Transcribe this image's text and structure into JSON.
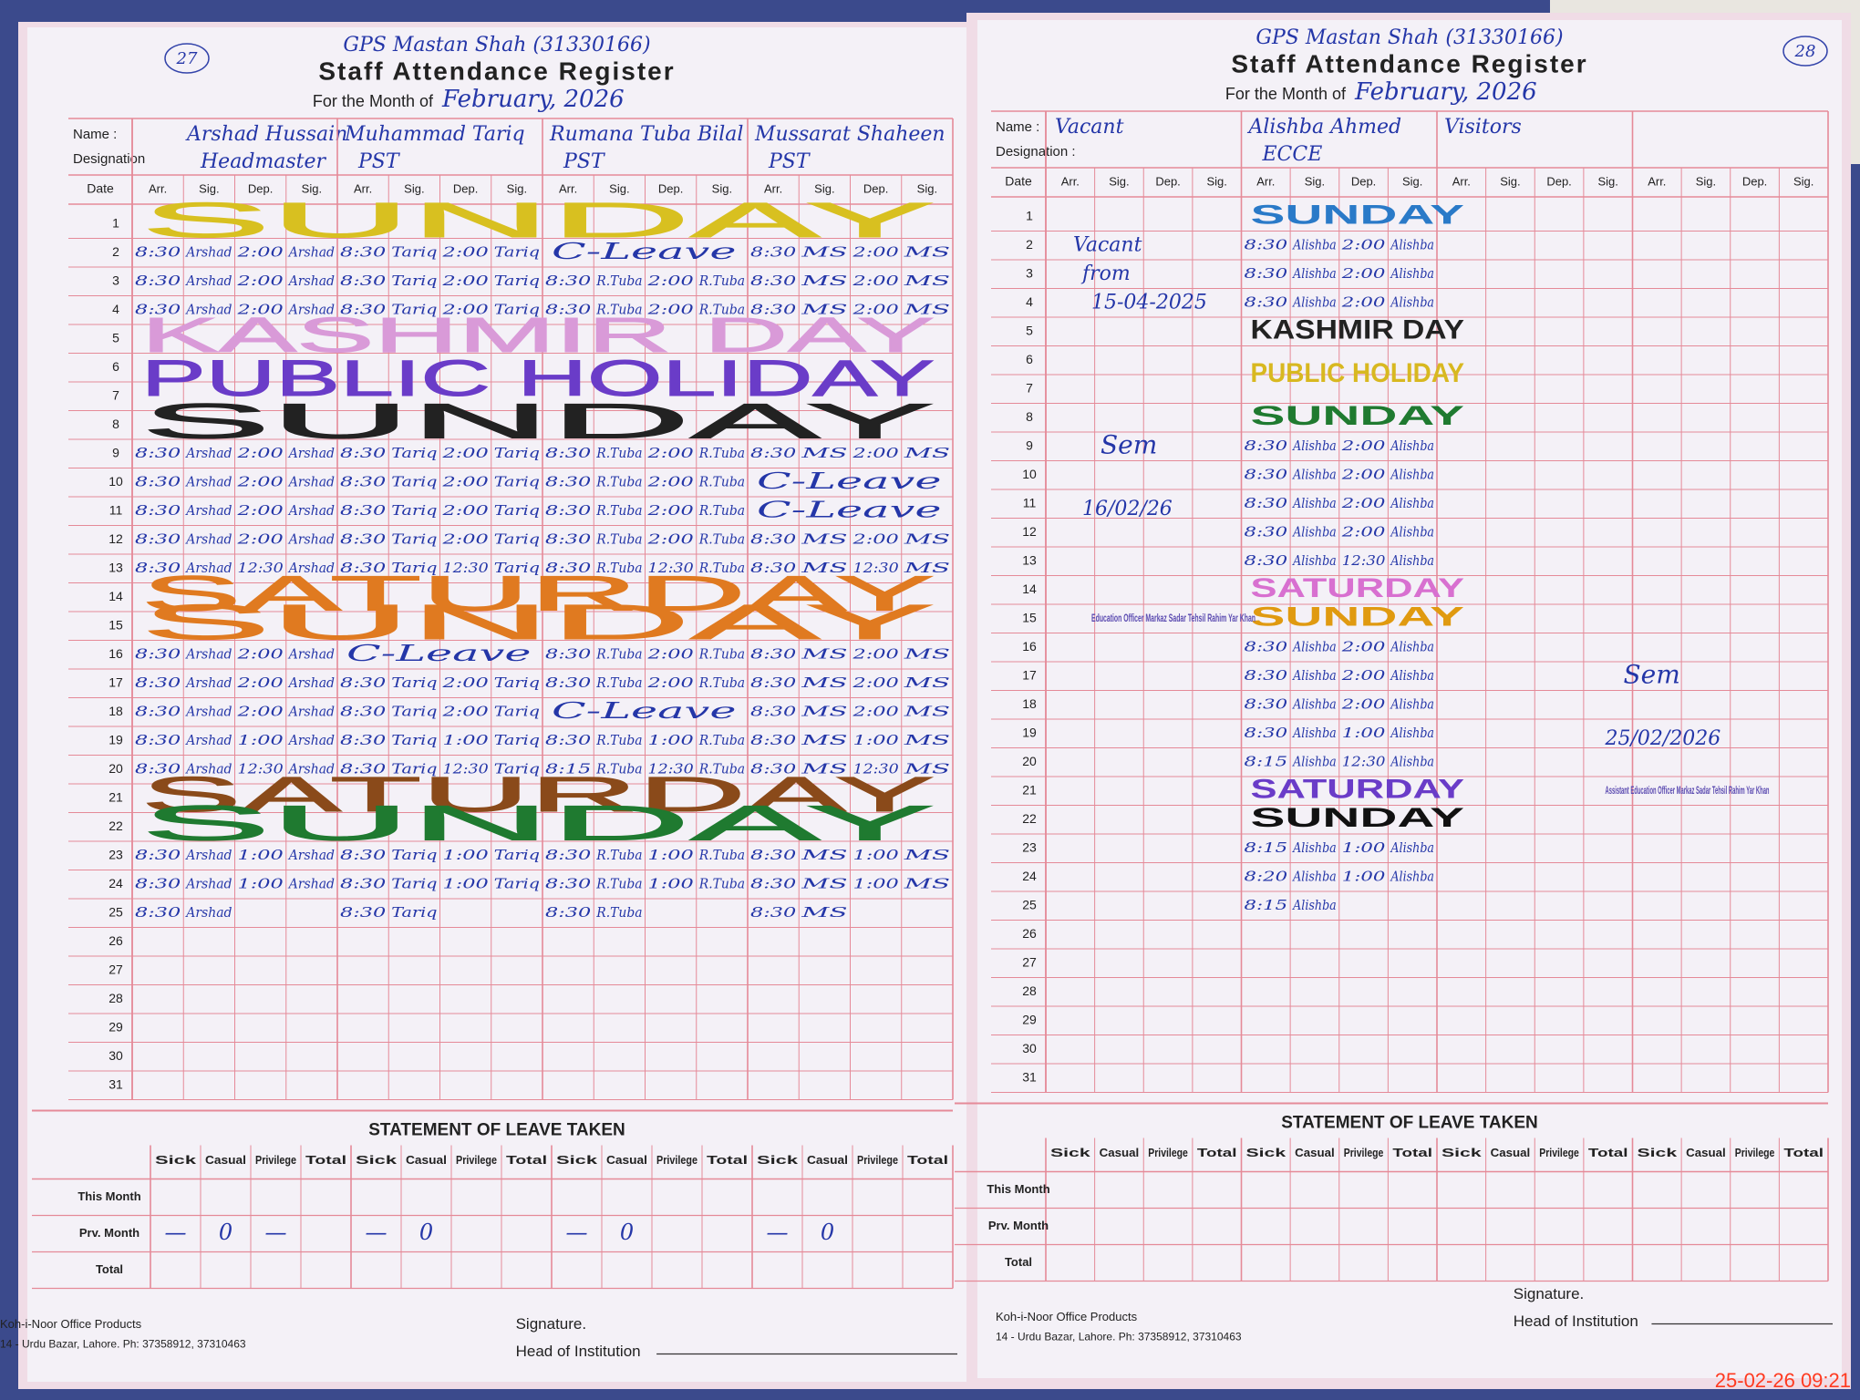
{
  "pages": [
    {
      "page_no": "27",
      "school": "GPS Mastan Shah (31330166)",
      "title": "Staff Attendance Register",
      "month_label": "For the Month of",
      "month": "February, 2026",
      "name_label": "Name :",
      "designation_label": "Designation",
      "date_label": "Date",
      "subheaders": [
        "Arr.",
        "Sig.",
        "Dep.",
        "Sig."
      ],
      "staff": [
        {
          "name": "Arshad Hussain",
          "designation": "Headmaster"
        },
        {
          "name": "Muhammad Tariq",
          "designation": "PST"
        },
        {
          "name": "Rumana Tuba Bilal",
          "designation": "PST"
        },
        {
          "name": "Mussarat Shaheen",
          "designation": "PST"
        }
      ],
      "rows": [
        {
          "date": "1",
          "note": "SUNDAY",
          "color": "#d8c020"
        },
        {
          "date": "2",
          "cells": [
            [
              "8:30",
              "Arshad",
              "2:00",
              "Arshad"
            ],
            [
              "8:30",
              "Tariq",
              "2:00",
              "Tariq"
            ],
            "C-Leave",
            [
              "8:30",
              "MS",
              "2:00",
              "MS"
            ]
          ]
        },
        {
          "date": "3",
          "cells": [
            [
              "8:30",
              "Arshad",
              "2:00",
              "Arshad"
            ],
            [
              "8:30",
              "Tariq",
              "2:00",
              "Tariq"
            ],
            [
              "8:30",
              "R.Tuba",
              "2:00",
              "R.Tuba"
            ],
            [
              "8:30",
              "MS",
              "2:00",
              "MS"
            ]
          ]
        },
        {
          "date": "4",
          "cells": [
            [
              "8:30",
              "Arshad",
              "2:00",
              "Arshad"
            ],
            [
              "8:30",
              "Tariq",
              "2:00",
              "Tariq"
            ],
            [
              "8:30",
              "R.Tuba",
              "2:00",
              "R.Tuba"
            ],
            [
              "8:30",
              "MS",
              "2:00",
              "MS"
            ]
          ]
        },
        {
          "date": "5",
          "note": "KASHMIR DAY",
          "color": "#d99ad8"
        },
        {
          "date": "6",
          "note": "PUBLIC HOLIDAY",
          "color": "#6a3cc8"
        },
        {
          "date": "7"
        },
        {
          "date": "8",
          "note": "SUNDAY",
          "color": "#222222"
        },
        {
          "date": "9",
          "cells": [
            [
              "8:30",
              "Arshad",
              "2:00",
              "Arshad"
            ],
            [
              "8:30",
              "Tariq",
              "2:00",
              "Tariq"
            ],
            [
              "8:30",
              "R.Tuba",
              "2:00",
              "R.Tuba"
            ],
            [
              "8:30",
              "MS",
              "2:00",
              "MS"
            ]
          ]
        },
        {
          "date": "10",
          "cells": [
            [
              "8:30",
              "Arshad",
              "2:00",
              "Arshad"
            ],
            [
              "8:30",
              "Tariq",
              "2:00",
              "Tariq"
            ],
            [
              "8:30",
              "R.Tuba",
              "2:00",
              "R.Tuba"
            ],
            "C-Leave"
          ]
        },
        {
          "date": "11",
          "cells": [
            [
              "8:30",
              "Arshad",
              "2:00",
              "Arshad"
            ],
            [
              "8:30",
              "Tariq",
              "2:00",
              "Tariq"
            ],
            [
              "8:30",
              "R.Tuba",
              "2:00",
              "R.Tuba"
            ],
            "C-Leave"
          ]
        },
        {
          "date": "12",
          "cells": [
            [
              "8:30",
              "Arshad",
              "2:00",
              "Arshad"
            ],
            [
              "8:30",
              "Tariq",
              "2:00",
              "Tariq"
            ],
            [
              "8:30",
              "R.Tuba",
              "2:00",
              "R.Tuba"
            ],
            [
              "8:30",
              "MS",
              "2:00",
              "MS"
            ]
          ]
        },
        {
          "date": "13",
          "cells": [
            [
              "8:30",
              "Arshad",
              "12:30",
              "Arshad"
            ],
            [
              "8:30",
              "Tariq",
              "12:30",
              "Tariq"
            ],
            [
              "8:30",
              "R.Tuba",
              "12:30",
              "R.Tuba"
            ],
            [
              "8:30",
              "MS",
              "12:30",
              "MS"
            ]
          ]
        },
        {
          "date": "14",
          "note": "SATURDAY",
          "color": "#e07a20"
        },
        {
          "date": "15",
          "note": "SUNDAY",
          "color": "#e07a20"
        },
        {
          "date": "16",
          "cells": [
            [
              "8:30",
              "Arshad",
              "2:00",
              "Arshad"
            ],
            "C-Leave",
            [
              "8:30",
              "R.Tuba",
              "2:00",
              "R.Tuba"
            ],
            [
              "8:30",
              "MS",
              "2:00",
              "MS"
            ]
          ]
        },
        {
          "date": "17",
          "cells": [
            [
              "8:30",
              "Arshad",
              "2:00",
              "Arshad"
            ],
            [
              "8:30",
              "Tariq",
              "2:00",
              "Tariq"
            ],
            [
              "8:30",
              "R.Tuba",
              "2:00",
              "R.Tuba"
            ],
            [
              "8:30",
              "MS",
              "2:00",
              "MS"
            ]
          ]
        },
        {
          "date": "18",
          "cells": [
            [
              "8:30",
              "Arshad",
              "2:00",
              "Arshad"
            ],
            [
              "8:30",
              "Tariq",
              "2:00",
              "Tariq"
            ],
            "C-Leave",
            [
              "8:30",
              "MS",
              "2:00",
              "MS"
            ]
          ]
        },
        {
          "date": "19",
          "cells": [
            [
              "8:30",
              "Arshad",
              "1:00",
              "Arshad"
            ],
            [
              "8:30",
              "Tariq",
              "1:00",
              "Tariq"
            ],
            [
              "8:30",
              "R.Tuba",
              "1:00",
              "R.Tuba"
            ],
            [
              "8:30",
              "MS",
              "1:00",
              "MS"
            ]
          ]
        },
        {
          "date": "20",
          "cells": [
            [
              "8:30",
              "Arshad",
              "12:30",
              "Arshad"
            ],
            [
              "8:30",
              "Tariq",
              "12:30",
              "Tariq"
            ],
            [
              "8:15",
              "R.Tuba",
              "12:30",
              "R.Tuba"
            ],
            [
              "8:30",
              "MS",
              "12:30",
              "MS"
            ]
          ]
        },
        {
          "date": "21",
          "note": "SATURDAY",
          "color": "#8a4a1a"
        },
        {
          "date": "22",
          "note": "SUNDAY",
          "color": "#1f7a30"
        },
        {
          "date": "23",
          "cells": [
            [
              "8:30",
              "Arshad",
              "1:00",
              "Arshad"
            ],
            [
              "8:30",
              "Tariq",
              "1:00",
              "Tariq"
            ],
            [
              "8:30",
              "R.Tuba",
              "1:00",
              "R.Tuba"
            ],
            [
              "8:30",
              "MS",
              "1:00",
              "MS"
            ]
          ]
        },
        {
          "date": "24",
          "cells": [
            [
              "8:30",
              "Arshad",
              "1:00",
              "Arshad"
            ],
            [
              "8:30",
              "Tariq",
              "1:00",
              "Tariq"
            ],
            [
              "8:30",
              "R.Tuba",
              "1:00",
              "R.Tuba"
            ],
            [
              "8:30",
              "MS",
              "1:00",
              "MS"
            ]
          ]
        },
        {
          "date": "25",
          "cells": [
            [
              "8:30",
              "Arshad"
            ],
            [
              "8:30",
              "Tariq"
            ],
            [
              "8:30",
              "R.Tuba"
            ],
            [
              "8:30",
              "MS"
            ]
          ]
        },
        {
          "date": "26"
        },
        {
          "date": "27"
        },
        {
          "date": "28"
        },
        {
          "date": "29"
        },
        {
          "date": "30"
        },
        {
          "date": "31"
        }
      ],
      "leave": {
        "title": "STATEMENT OF LEAVE TAKEN",
        "columns": [
          "Sick",
          "Casual",
          "Privilege",
          "Total"
        ],
        "row_labels": [
          "This Month",
          "Prv. Month",
          "Total"
        ],
        "prv_month": [
          [
            "—",
            "0",
            "—"
          ],
          [
            "—",
            "0"
          ],
          [
            "—",
            "0"
          ],
          [
            "—",
            "0"
          ]
        ]
      },
      "brand": "Koh-i-Noor Office Products",
      "address": "14 - Urdu Bazar, Lahore. Ph: 37358912, 37310463",
      "signature_label": "Signature.",
      "head_label": "Head of Institution"
    },
    {
      "page_no": "28",
      "school": "GPS Mastan Shah (31330166)",
      "title": "Staff Attendance Register",
      "month_label": "For the Month of",
      "month": "February, 2026",
      "name_label": "Name :",
      "designation_label": "Designation :",
      "date_label": "Date",
      "subheaders": [
        "Arr.",
        "Sig.",
        "Dep.",
        "Sig."
      ],
      "staff": [
        {
          "name": "Vacant"
        },
        {
          "name": "Alishba Ahmed",
          "designation": "ECCE"
        },
        {
          "name": "Visitors"
        }
      ],
      "rows": [
        {
          "date": "1",
          "note": "SUNDAY",
          "color": "#2a7ac8"
        },
        {
          "date": "2",
          "entry": [
            "8:30",
            "Alishba",
            "2:00",
            "Alishba"
          ]
        },
        {
          "date": "3",
          "entry": [
            "8:30",
            "Alishba",
            "2:00",
            "Alishba"
          ]
        },
        {
          "date": "4",
          "entry": [
            "8:30",
            "Alishba",
            "2:00",
            "Alishba"
          ]
        },
        {
          "date": "5",
          "note": "KASHMIR DAY",
          "color": "#222222"
        },
        {
          "date": "6",
          "note": "PUBLIC HOLIDAY",
          "color": "#d8b820"
        },
        {
          "date": "7"
        },
        {
          "date": "8",
          "note": "SUNDAY",
          "color": "#1f7a30"
        },
        {
          "date": "9",
          "entry": [
            "8:30",
            "Alishba",
            "2:00",
            "Alishba"
          ]
        },
        {
          "date": "10",
          "entry": [
            "8:30",
            "Alishba",
            "2:00",
            "Alishba"
          ]
        },
        {
          "date": "11",
          "entry": [
            "8:30",
            "Alishba",
            "2:00",
            "Alishba"
          ]
        },
        {
          "date": "12",
          "entry": [
            "8:30",
            "Alishba",
            "2:00",
            "Alishba"
          ]
        },
        {
          "date": "13",
          "entry": [
            "8:30",
            "Alishba",
            "12:30",
            "Alishba"
          ]
        },
        {
          "date": "14",
          "note": "SATURDAY",
          "color": "#d870d0"
        },
        {
          "date": "15",
          "note": "SUNDAY",
          "color": "#e09a10"
        },
        {
          "date": "16",
          "entry": [
            "8:30",
            "Alishba",
            "2:00",
            "Alishba"
          ]
        },
        {
          "date": "17",
          "entry": [
            "8:30",
            "Alishba",
            "2:00",
            "Alishba"
          ]
        },
        {
          "date": "18",
          "entry": [
            "8:30",
            "Alishba",
            "2:00",
            "Alishba"
          ]
        },
        {
          "date": "19",
          "entry": [
            "8:30",
            "Alishba",
            "1:00",
            "Alishba"
          ]
        },
        {
          "date": "20",
          "entry": [
            "8:15",
            "Alishba",
            "12:30",
            "Alishba"
          ]
        },
        {
          "date": "21",
          "note": "SATURDAY",
          "color": "#6a3cc8"
        },
        {
          "date": "22",
          "note": "SUNDAY",
          "color": "#111111"
        },
        {
          "date": "23",
          "entry": [
            "8:15",
            "Alishba",
            "1:00",
            "Alishba"
          ]
        },
        {
          "date": "24",
          "entry": [
            "8:20",
            "Alishba",
            "1:00",
            "Alishba"
          ]
        },
        {
          "date": "25",
          "entry": [
            "8:15",
            "Alishba"
          ]
        },
        {
          "date": "26"
        },
        {
          "date": "27"
        },
        {
          "date": "28"
        },
        {
          "date": "29"
        },
        {
          "date": "30"
        },
        {
          "date": "31"
        }
      ],
      "vacant_note": [
        "Vacant",
        "from",
        "15-04-2025"
      ],
      "signatures": [
        {
          "text": "Sem",
          "date": "16/02/26"
        },
        {
          "text": "Sem",
          "date": "25/02/2026"
        }
      ],
      "stamps": [
        "Education Officer Markaz Sadar Tehsil Rahim Yar Khan",
        "Assistant Education Officer Markaz Sadar Tehsil Rahim Yar Khan"
      ],
      "leave": {
        "title": "STATEMENT OF LEAVE TAKEN",
        "columns": [
          "Sick",
          "Casual",
          "Privilege",
          "Total"
        ],
        "row_labels": [
          "This Month",
          "Prv. Month",
          "Total"
        ]
      },
      "brand": "Koh-i-Noor Office Products",
      "address": "14 - Urdu Bazar, Lahore. Ph: 37358912, 37310463",
      "signature_label": "Signature.",
      "head_label": "Head of Institution"
    }
  ],
  "timestamp": "25-02-26 09:21"
}
